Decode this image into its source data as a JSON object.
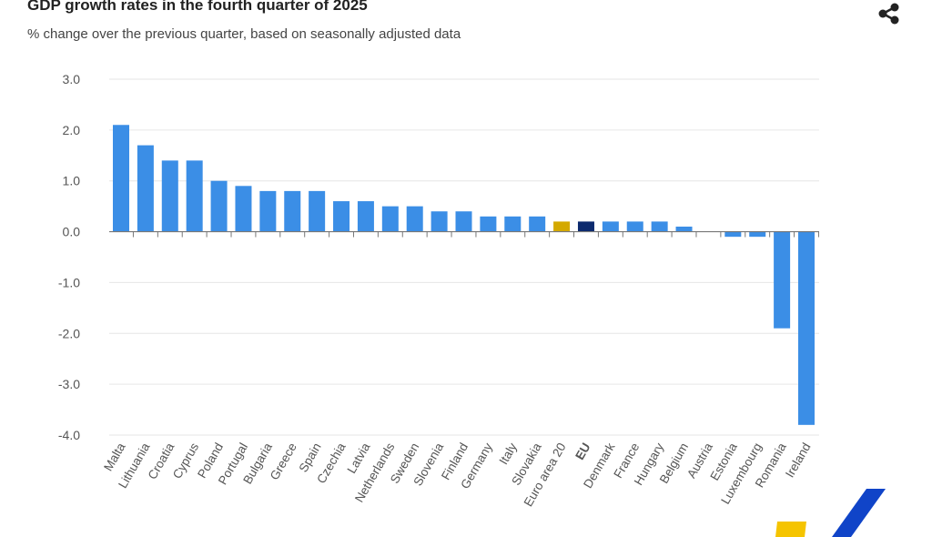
{
  "chart_data": {
    "type": "bar",
    "title": "GDP growth rates in the fourth quarter of 2025",
    "subtitle": "% change over the previous quarter, based on seasonally adjusted data",
    "xlabel": "",
    "ylabel": "",
    "ylim": [
      -4.0,
      3.0
    ],
    "yticks": [
      "3.0",
      "2.0",
      "1.0",
      "0.0",
      "-1.0",
      "-2.0",
      "-3.0",
      "-4.0"
    ],
    "grid": true,
    "categories": [
      "Malta",
      "Lithuania",
      "Croatia",
      "Cyprus",
      "Poland",
      "Portugal",
      "Bulgaria",
      "Greece",
      "Spain",
      "Czechia",
      "Latvia",
      "Netherlands",
      "Sweden",
      "Slovenia",
      "Finland",
      "Germany",
      "Italy",
      "Slovakia",
      "Euro area 20",
      "EU",
      "Denmark",
      "France",
      "Hungary",
      "Belgium",
      "Austria",
      "Estonia",
      "Luxembourg",
      "Romania",
      "Ireland"
    ],
    "values": [
      2.1,
      1.7,
      1.4,
      1.4,
      1.0,
      0.9,
      0.8,
      0.8,
      0.8,
      0.6,
      0.6,
      0.5,
      0.5,
      0.4,
      0.4,
      0.3,
      0.3,
      0.3,
      0.2,
      0.2,
      0.2,
      0.2,
      0.2,
      0.1,
      0.0,
      -0.1,
      -0.1,
      -1.9,
      -3.8
    ],
    "bold_categories": [
      "EU"
    ],
    "colors": {
      "default": "#3b8ee6",
      "Euro area 20": "#d4a900",
      "EU": "#0c2a6e"
    }
  },
  "share_icon": "share-icon",
  "logo_colors": [
    "#f5c400",
    "#1044c8"
  ]
}
